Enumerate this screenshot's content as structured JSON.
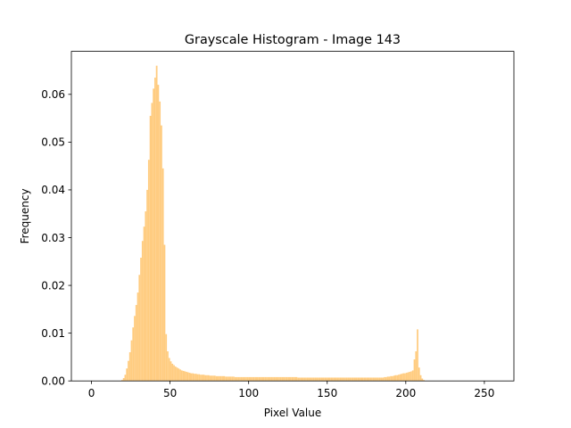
{
  "chart_data": {
    "type": "bar",
    "title": "Grayscale Histogram - Image 143",
    "xlabel": "Pixel Value",
    "ylabel": "Frequency",
    "xlim": [
      -12.8,
      268.8
    ],
    "ylim": [
      0,
      0.069
    ],
    "xticks": [
      0,
      50,
      100,
      150,
      200,
      250
    ],
    "yticks": [
      0.0,
      0.01,
      0.02,
      0.03,
      0.04,
      0.05,
      0.06
    ],
    "ytick_labels": [
      "0.00",
      "0.01",
      "0.02",
      "0.03",
      "0.04",
      "0.05",
      "0.06"
    ],
    "bar_color": "#ffcc80",
    "grid": false,
    "bin_width": 1,
    "bins": [
      {
        "start": 19,
        "values": [
          0.0002,
          0.0006,
          0.0013,
          0.0026,
          0.0042,
          0.006,
          0.0085,
          0.0112,
          0.0136,
          0.0159,
          0.0185,
          0.0222,
          0.0258,
          0.0293,
          0.0323,
          0.0355,
          0.04,
          0.0463,
          0.0555,
          0.0582,
          0.0612,
          0.0635,
          0.066,
          0.062,
          0.0585,
          0.0535,
          0.0445,
          0.0285,
          0.0098,
          0.0062,
          0.0048,
          0.0041,
          0.0036,
          0.0033,
          0.003,
          0.0028,
          0.0026,
          0.0024,
          0.0022,
          0.0021,
          0.002,
          0.0019
        ]
      },
      {
        "start": 61,
        "values": [
          0.0018,
          0.0017,
          0.0016,
          0.0016,
          0.0015,
          0.0015,
          0.0014,
          0.0014,
          0.0013,
          0.0013,
          0.0013,
          0.0012,
          0.0012,
          0.0012,
          0.0011,
          0.0011,
          0.0011,
          0.0011,
          0.001,
          0.001,
          0.001,
          0.001,
          0.001,
          0.001,
          0.0009,
          0.0009,
          0.0009,
          0.0009,
          0.0009,
          0.0009
        ]
      },
      {
        "start": 91,
        "flat": 0.0008,
        "count": 40
      },
      {
        "start": 131,
        "flat": 0.0007,
        "count": 55
      },
      {
        "start": 186,
        "values": [
          0.0008,
          0.0008,
          0.0009,
          0.0009,
          0.001,
          0.001,
          0.0011,
          0.0012,
          0.0012,
          0.0013,
          0.0014,
          0.0015,
          0.0016,
          0.0016,
          0.0017,
          0.0018,
          0.0019,
          0.002,
          0.0022,
          0.0045,
          0.0062,
          0.0108,
          0.0028,
          0.0012,
          0.0005,
          0.0002
        ]
      }
    ]
  }
}
